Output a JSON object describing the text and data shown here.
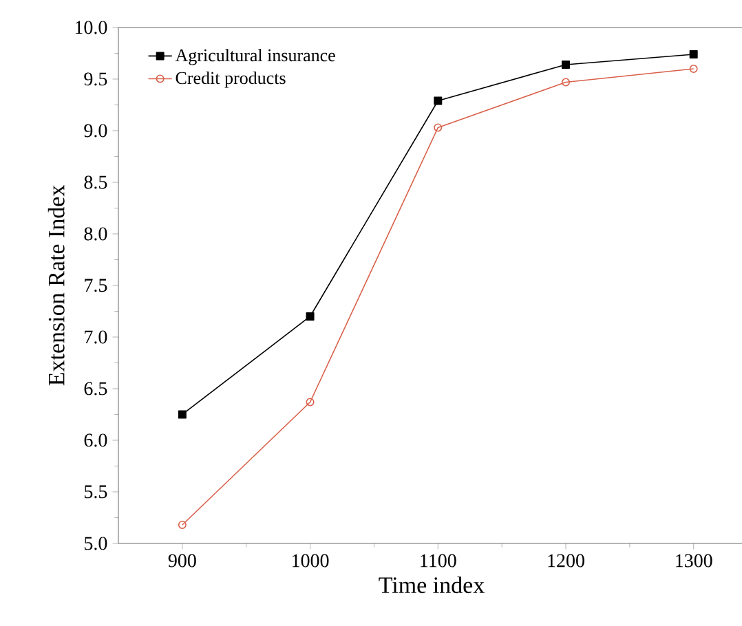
{
  "chart_data": {
    "type": "line",
    "xlabel": "Time index",
    "ylabel": "Extension Rate Index",
    "x": [
      900,
      1000,
      1100,
      1200,
      1300
    ],
    "series": [
      {
        "name": "Agricultural insurance",
        "color": "#000000",
        "marker": "square",
        "values": [
          6.25,
          7.2,
          9.29,
          9.64,
          9.74
        ]
      },
      {
        "name": "Credit products",
        "color": "#d9604a",
        "marker": "circle",
        "values": [
          5.18,
          6.37,
          9.03,
          9.47,
          9.6
        ]
      }
    ],
    "xlim": [
      850,
      1340
    ],
    "xticks": [
      900,
      1000,
      1100,
      1200,
      1300
    ],
    "ylim": [
      5.0,
      10.0
    ],
    "yticks": [
      {
        "value": 5.0,
        "label": "5.0"
      },
      {
        "value": 5.5,
        "label": "5.5"
      },
      {
        "value": 6.0,
        "label": "6.0"
      },
      {
        "value": 6.5,
        "label": "6.5"
      },
      {
        "value": 7.0,
        "label": "7.0"
      },
      {
        "value": 7.5,
        "label": "7.5"
      },
      {
        "value": 8.0,
        "label": "8.0"
      },
      {
        "value": 8.5,
        "label": "8.5"
      },
      {
        "value": 9.0,
        "label": "9.0"
      },
      {
        "value": 9.5,
        "label": "9.5"
      },
      {
        "value": 10.0,
        "label": "10.0"
      }
    ],
    "legend": "top left",
    "grid": false,
    "line_style": "solid"
  }
}
